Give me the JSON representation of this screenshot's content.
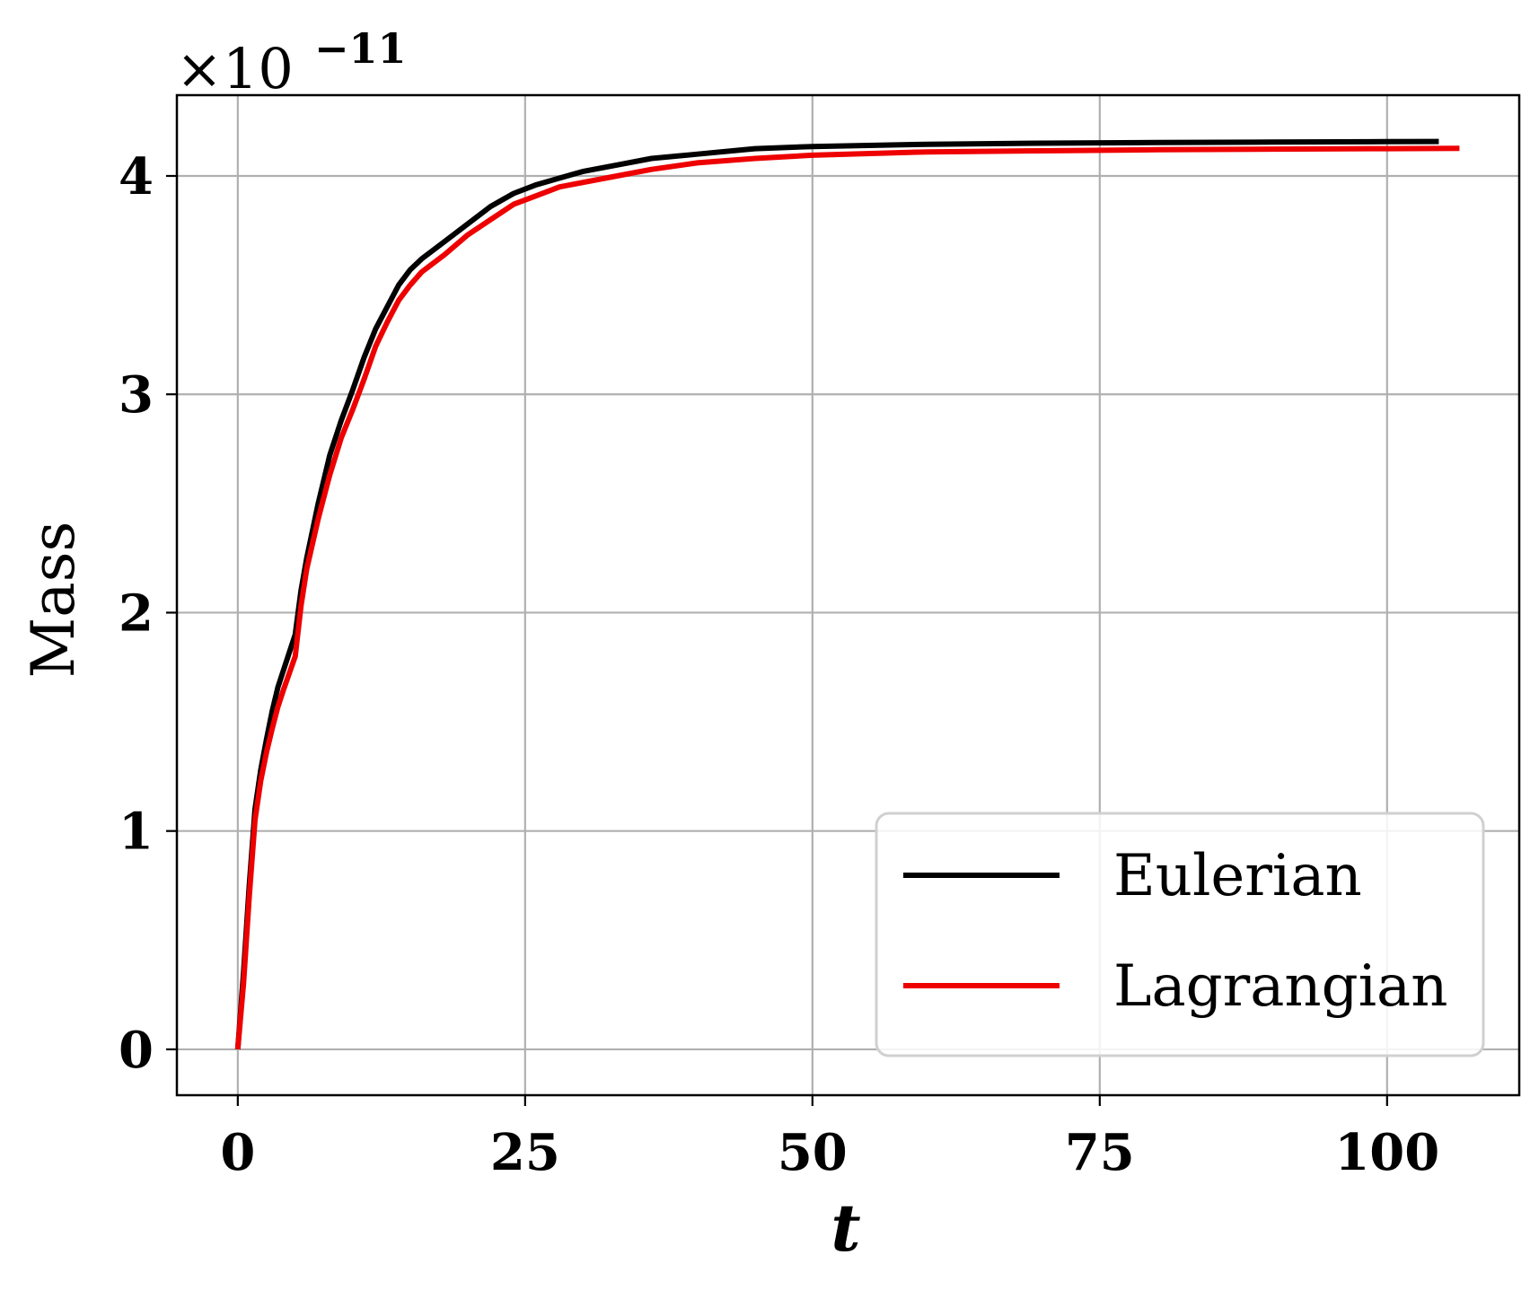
{
  "chart_data": {
    "type": "line",
    "title": "",
    "xlabel": "t",
    "ylabel": "Mass",
    "y_multiplier": "×10",
    "y_exponent": "−11",
    "xlim": [
      -5.3,
      111.5
    ],
    "ylim": [
      -0.21,
      4.37
    ],
    "x_ticks": [
      0,
      25,
      50,
      75,
      100
    ],
    "y_ticks": [
      0,
      1,
      2,
      3,
      4
    ],
    "grid": true,
    "legend_position": "lower-right",
    "series": [
      {
        "name": "Eulerian",
        "color": "#000000",
        "points": [
          [
            0,
            0
          ],
          [
            0.5,
            0.35
          ],
          [
            1,
            0.75
          ],
          [
            1.5,
            1.1
          ],
          [
            2,
            1.28
          ],
          [
            2.5,
            1.42
          ],
          [
            3,
            1.55
          ],
          [
            3.5,
            1.66
          ],
          [
            4,
            1.74
          ],
          [
            5,
            1.9
          ],
          [
            5.5,
            2.1
          ],
          [
            6,
            2.25
          ],
          [
            7,
            2.5
          ],
          [
            8,
            2.72
          ],
          [
            9,
            2.88
          ],
          [
            10,
            3.02
          ],
          [
            11,
            3.17
          ],
          [
            12,
            3.3
          ],
          [
            13,
            3.4
          ],
          [
            14,
            3.5
          ],
          [
            15,
            3.57
          ],
          [
            16,
            3.62
          ],
          [
            18,
            3.7
          ],
          [
            20,
            3.78
          ],
          [
            22,
            3.86
          ],
          [
            24,
            3.92
          ],
          [
            26,
            3.96
          ],
          [
            28,
            3.99
          ],
          [
            30,
            4.02
          ],
          [
            33,
            4.05
          ],
          [
            36,
            4.08
          ],
          [
            40,
            4.1
          ],
          [
            45,
            4.125
          ],
          [
            50,
            4.135
          ],
          [
            60,
            4.145
          ],
          [
            70,
            4.15
          ],
          [
            80,
            4.153
          ],
          [
            90,
            4.155
          ],
          [
            100,
            4.157
          ],
          [
            104.5,
            4.158
          ]
        ]
      },
      {
        "name": "Lagrangian",
        "color": "#ee0000",
        "points": [
          [
            0,
            0
          ],
          [
            0.5,
            0.3
          ],
          [
            1,
            0.7
          ],
          [
            1.5,
            1.05
          ],
          [
            2,
            1.23
          ],
          [
            2.5,
            1.36
          ],
          [
            3,
            1.47
          ],
          [
            3.5,
            1.57
          ],
          [
            4,
            1.65
          ],
          [
            5,
            1.8
          ],
          [
            5.5,
            2.03
          ],
          [
            6,
            2.2
          ],
          [
            7,
            2.43
          ],
          [
            8,
            2.63
          ],
          [
            9,
            2.8
          ],
          [
            10,
            2.93
          ],
          [
            11,
            3.07
          ],
          [
            12,
            3.22
          ],
          [
            13,
            3.33
          ],
          [
            14,
            3.43
          ],
          [
            15,
            3.5
          ],
          [
            16,
            3.56
          ],
          [
            18,
            3.64
          ],
          [
            20,
            3.73
          ],
          [
            22,
            3.8
          ],
          [
            24,
            3.87
          ],
          [
            26,
            3.91
          ],
          [
            28,
            3.95
          ],
          [
            30,
            3.97
          ],
          [
            33,
            4.0
          ],
          [
            36,
            4.03
          ],
          [
            40,
            4.06
          ],
          [
            45,
            4.08
          ],
          [
            50,
            4.095
          ],
          [
            60,
            4.11
          ],
          [
            70,
            4.115
          ],
          [
            80,
            4.12
          ],
          [
            90,
            4.123
          ],
          [
            100,
            4.125
          ],
          [
            106.3,
            4.126
          ]
        ]
      }
    ]
  }
}
